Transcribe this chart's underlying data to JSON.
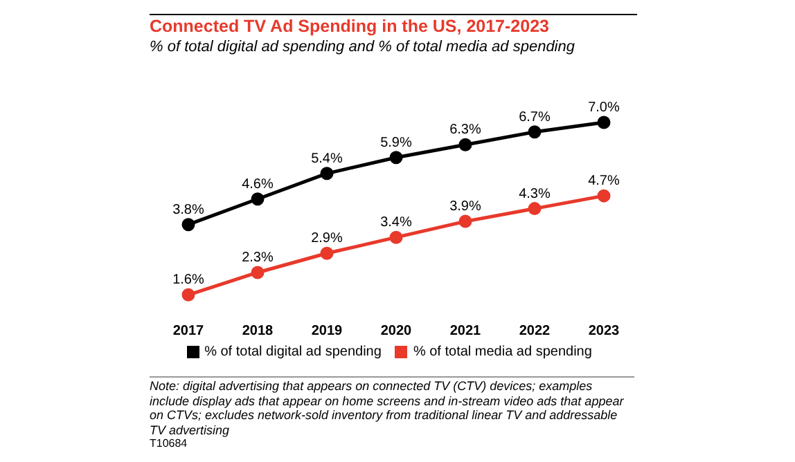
{
  "chart_data": {
    "type": "line",
    "title": "Connected TV Ad Spending in the US, 2017-2023",
    "subtitle": "% of total digital ad spending and % of total media ad spending",
    "categories": [
      "2017",
      "2018",
      "2019",
      "2020",
      "2021",
      "2022",
      "2023"
    ],
    "series": [
      {
        "name": "% of total digital ad spending",
        "color": "#000000",
        "values": [
          3.8,
          4.6,
          5.4,
          5.9,
          6.3,
          6.7,
          7.0
        ],
        "value_labels": [
          "3.8%",
          "4.6%",
          "5.4%",
          "5.9%",
          "6.3%",
          "6.7%",
          "7.0%"
        ]
      },
      {
        "name": "% of total media ad spending",
        "color": "#e8392b",
        "values": [
          1.6,
          2.3,
          2.9,
          3.4,
          3.9,
          4.3,
          4.7
        ],
        "value_labels": [
          "1.6%",
          "2.3%",
          "2.9%",
          "3.4%",
          "3.9%",
          "4.3%",
          "4.7%"
        ]
      }
    ],
    "marker": "circle",
    "legend": "bottom",
    "annotations": [
      "Note: digital advertising that appears on connected TV (CTV) devices; examples include display ads that appear on home screens and in-stream video ads that appear on CTVs; excludes network-sold inventory from traditional linear TV and addressable TV advertising",
      "T10684"
    ]
  }
}
